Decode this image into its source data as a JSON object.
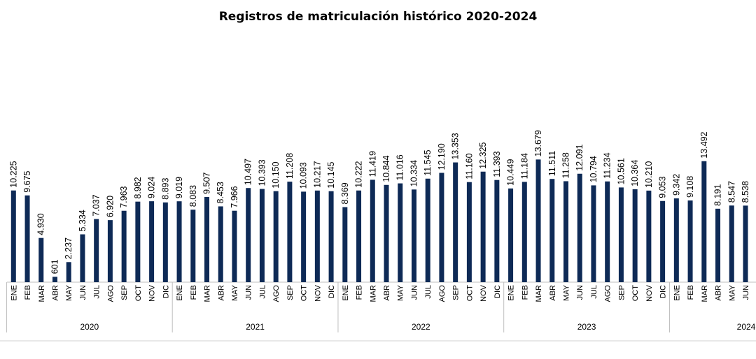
{
  "chart_data": {
    "type": "bar",
    "title": "Registros de matriculación histórico 2020-2024",
    "bar_color": "#0e2a56",
    "groups": [
      {
        "year": "2020",
        "months": [
          "ENE",
          "FEB",
          "MAR",
          "ABR",
          "MAY",
          "JUN",
          "JUL",
          "AGO",
          "SEP",
          "OCT",
          "NOV",
          "DIC"
        ],
        "values": [
          10225,
          9675,
          4930,
          601,
          2237,
          5334,
          7037,
          6920,
          7963,
          8982,
          9024,
          8893
        ],
        "labels": [
          "10.225",
          "9.675",
          "4.930",
          "601",
          "2.237",
          "5.334",
          "7.037",
          "6.920",
          "7.963",
          "8.982",
          "9.024",
          "8.893"
        ]
      },
      {
        "year": "2021",
        "months": [
          "ENE",
          "FEB",
          "MAR",
          "ABR",
          "MAY",
          "JUN",
          "JUL",
          "AGO",
          "SEP",
          "OCT",
          "NOV",
          "DIC"
        ],
        "values": [
          9019,
          8083,
          9507,
          8453,
          7966,
          10497,
          10393,
          10150,
          11208,
          10093,
          10217,
          10145
        ],
        "labels": [
          "9.019",
          "8.083",
          "9.507",
          "8.453",
          "7.966",
          "10.497",
          "10.393",
          "10.150",
          "11.208",
          "10.093",
          "10.217",
          "10.145"
        ]
      },
      {
        "year": "2022",
        "months": [
          "ENE",
          "FEB",
          "MAR",
          "ABR",
          "MAY",
          "JUN",
          "JUL",
          "AGO",
          "SEP",
          "OCT",
          "NOV",
          "DIC"
        ],
        "values": [
          8369,
          10222,
          11419,
          10844,
          11016,
          10334,
          11545,
          12190,
          13353,
          11160,
          12325,
          11393
        ],
        "labels": [
          "8.369",
          "10.222",
          "11.419",
          "10.844",
          "11.016",
          "10.334",
          "11.545",
          "12.190",
          "13.353",
          "11.160",
          "12.325",
          "11.393"
        ]
      },
      {
        "year": "2023",
        "months": [
          "ENE",
          "FEB",
          "MAR",
          "ABR",
          "MAY",
          "JUN",
          "JUL",
          "AGO",
          "SEP",
          "OCT",
          "NOV",
          "DIC"
        ],
        "values": [
          10449,
          11184,
          13679,
          11511,
          11258,
          12091,
          10794,
          11234,
          10561,
          10364,
          10210,
          9053
        ],
        "labels": [
          "10.449",
          "11.184",
          "13.679",
          "11.511",
          "11.258",
          "12.091",
          "10.794",
          "11.234",
          "10.561",
          "10.364",
          "10.210",
          "9.053"
        ]
      },
      {
        "year": "2024",
        "months": [
          "ENE",
          "FEB",
          "MAR",
          "ABR",
          "MAY",
          "JUN"
        ],
        "values": [
          9342,
          9108,
          13492,
          8191,
          8547,
          8538
        ],
        "labels": [
          "9.342",
          "9.108",
          "13.492",
          "8.191",
          "8.547",
          "8.538"
        ]
      }
    ]
  }
}
